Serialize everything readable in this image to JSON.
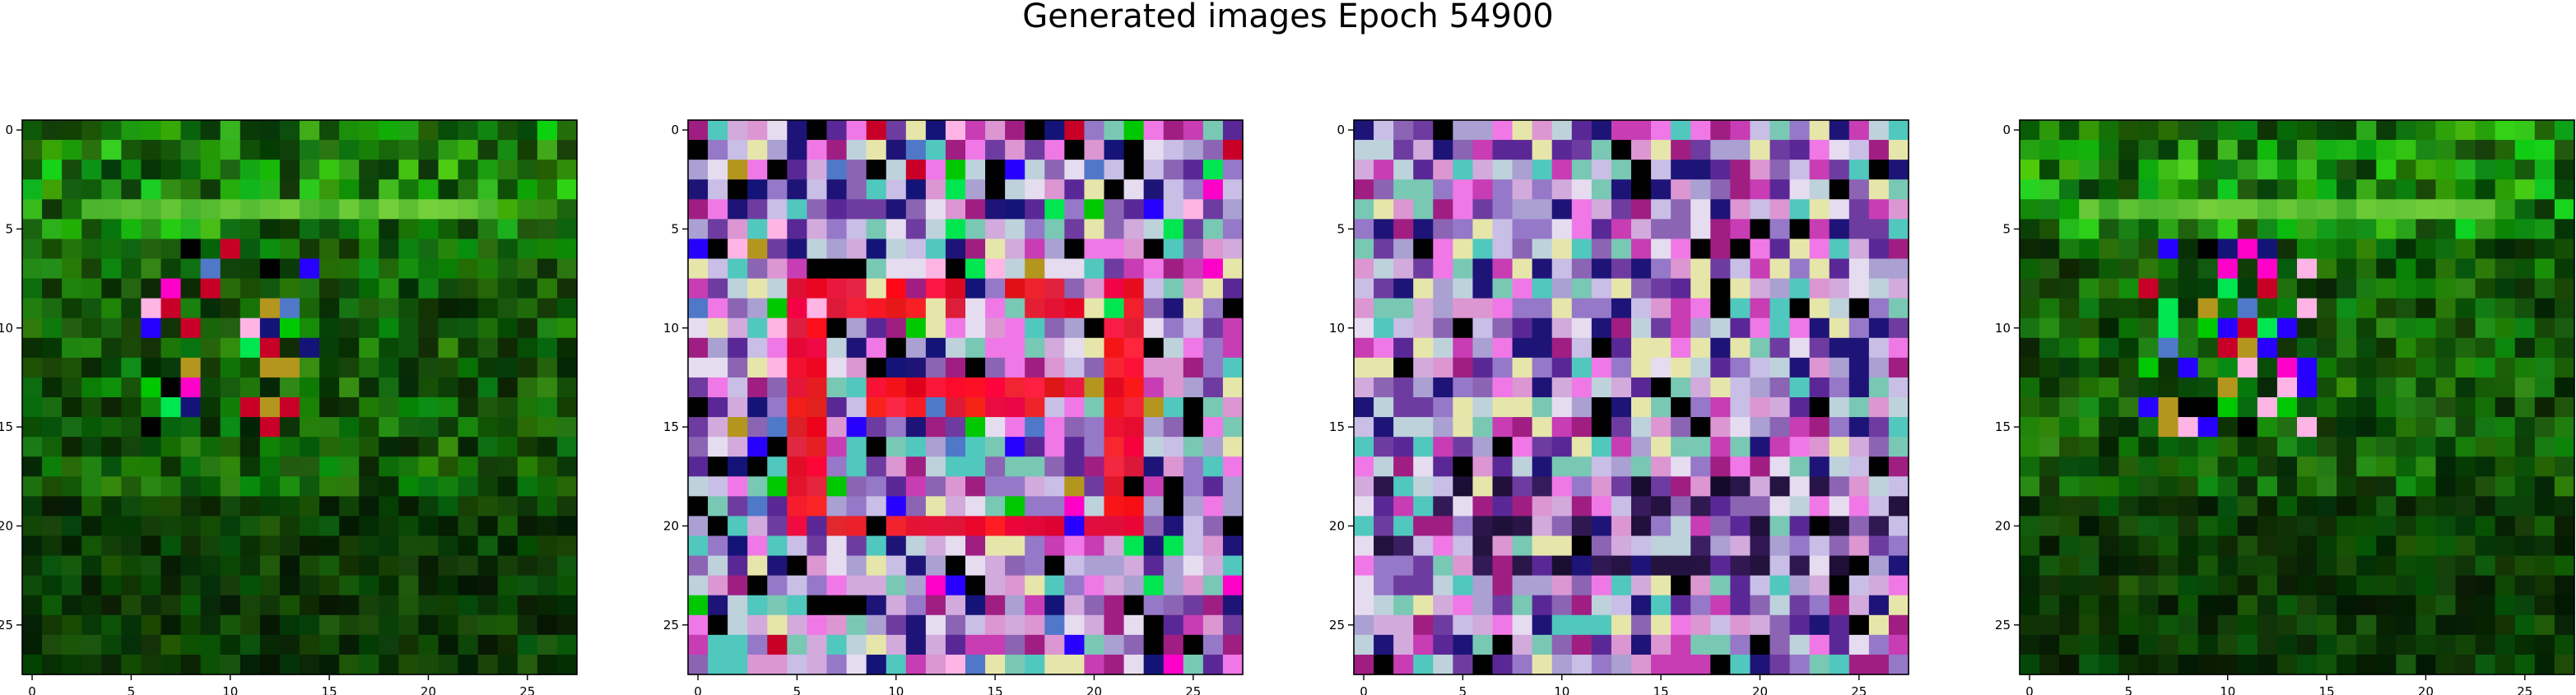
{
  "title": "Generated images Epoch 54900",
  "chart_data": {
    "type": "heatmap",
    "image_size": 28,
    "xticks": [
      0,
      5,
      10,
      15,
      20,
      25
    ],
    "yticks": [
      0,
      5,
      10,
      15,
      20,
      25
    ],
    "xlim": [
      -0.5,
      27.5
    ],
    "ylim": [
      27.5,
      -0.5
    ],
    "panels": [
      {
        "style": "green-noise",
        "seed": 11,
        "base": "#0b5a0b"
      },
      {
        "style": "colorful-red-square",
        "seed": 23,
        "base": "#b0a8cc",
        "accent": "#ee1133"
      },
      {
        "style": "pastel-noise",
        "seed": 37,
        "base": "#b0a0cc"
      },
      {
        "style": "green-noise",
        "seed": 53,
        "base": "#0b5a0b"
      }
    ]
  }
}
